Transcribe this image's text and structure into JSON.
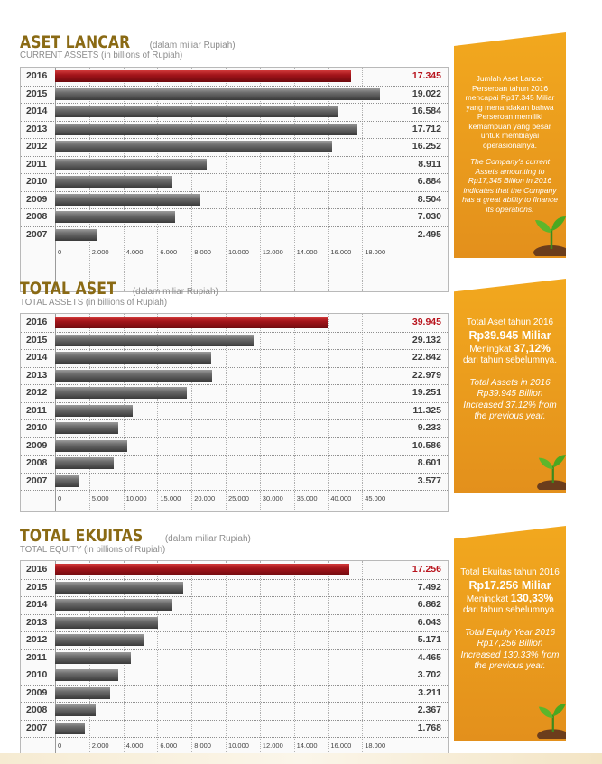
{
  "colors": {
    "title": "#8a6a14",
    "highlight": "#b8141d",
    "bar": "#4a4a4a",
    "panel": "#eb9c1d"
  },
  "sections": [
    {
      "title": "ASET LANCAR",
      "title_note": "(dalam miliar Rupiah)",
      "subtitle": "CURRENT ASSETS (in billions of Rupiah)",
      "panel": {
        "id_text": "Jumlah Aset Lancar Perseroan tahun 2016 mencapai Rp17.345 Miliar yang menandakan bahwa Perseroan memiliki kemampuan yang besar untuk membiayai operasionalnya.",
        "en_text": "The Company's current Assets amounting to Rp17,345 Billion in 2016 indicates that the Company has a great ability to finance its operations."
      }
    },
    {
      "title": "TOTAL ASET",
      "title_note": "(dalam miliar Rupiah)",
      "subtitle": "TOTAL ASSETS (in billions of Rupiah)",
      "panel": {
        "line1": "Total Aset tahun 2016",
        "big": "Rp39.945 Miliar",
        "line3_a": "Meningkat",
        "line3_b": "37,12%",
        "line4": "dari tahun sebelumnya.",
        "en_text": "Total Assets in 2016 Rp39.945 Billion Increased 37.12% from the previous year."
      }
    },
    {
      "title": "TOTAL EKUITAS",
      "title_note": "(dalam miliar Rupiah)",
      "subtitle": "TOTAL EQUITY (in billions of Rupiah)",
      "panel": {
        "line1": "Total Ekuitas tahun 2016",
        "big": "Rp17.256 Miliar",
        "line3_a": "Meningkat",
        "line3_b": "130,33%",
        "line4": "dari tahun sebelumnya.",
        "en_text": "Total Equity Year 2016 Rp17,256 Billion Increased 130.33% from the previous year."
      }
    }
  ],
  "chart_data": [
    {
      "type": "bar",
      "title": "ASET LANCAR",
      "categories": [
        "2016",
        "2015",
        "2014",
        "2013",
        "2012",
        "2011",
        "2010",
        "2009",
        "2008",
        "2007"
      ],
      "values": [
        17345,
        19022,
        16584,
        17712,
        16252,
        8911,
        6884,
        8504,
        7030,
        2495
      ],
      "value_labels": [
        "17.345",
        "19.022",
        "16.584",
        "17.712",
        "16.252",
        "8.911",
        "6.884",
        "8.504",
        "7.030",
        "2.495"
      ],
      "ticks": [
        0,
        2000,
        4000,
        6000,
        8000,
        10000,
        12000,
        14000,
        16000,
        18000
      ],
      "tick_labels": [
        "0",
        "2.000",
        "4.000",
        "6.000",
        "8.000",
        "10.000",
        "12.000",
        "14.000",
        "16.000",
        "18.000"
      ],
      "xlim": [
        0,
        20000
      ],
      "highlight": "2016"
    },
    {
      "type": "bar",
      "title": "TOTAL ASET",
      "categories": [
        "2016",
        "2015",
        "2014",
        "2013",
        "2012",
        "2011",
        "2010",
        "2009",
        "2008",
        "2007"
      ],
      "values": [
        39945,
        29132,
        22842,
        22979,
        19251,
        11325,
        9233,
        10586,
        8601,
        3577
      ],
      "value_labels": [
        "39.945",
        "29.132",
        "22.842",
        "22.979",
        "19.251",
        "11.325",
        "9.233",
        "10.586",
        "8.601",
        "3.577"
      ],
      "ticks": [
        0,
        5000,
        10000,
        15000,
        20000,
        25000,
        30000,
        35000,
        40000,
        45000
      ],
      "tick_labels": [
        "0",
        "5.000",
        "10.000",
        "15.000",
        "20.000",
        "25.000",
        "30.000",
        "35.000",
        "40.000",
        "45.000"
      ],
      "xlim": [
        0,
        47000
      ],
      "highlight": "2016"
    },
    {
      "type": "bar",
      "title": "TOTAL EKUITAS",
      "categories": [
        "2016",
        "2015",
        "2014",
        "2013",
        "2012",
        "2011",
        "2010",
        "2009",
        "2008",
        "2007"
      ],
      "values": [
        17256,
        7492,
        6862,
        6043,
        5171,
        4465,
        3702,
        3211,
        2367,
        1768
      ],
      "value_labels": [
        "17.256",
        "7.492",
        "6.862",
        "6.043",
        "5.171",
        "4.465",
        "3.702",
        "3.211",
        "2.367",
        "1.768"
      ],
      "ticks": [
        0,
        2000,
        4000,
        6000,
        8000,
        10000,
        12000,
        14000,
        16000,
        18000
      ],
      "tick_labels": [
        "0",
        "2.000",
        "4.000",
        "6.000",
        "8.000",
        "10.000",
        "12.000",
        "14.000",
        "16.000",
        "18.000"
      ],
      "xlim": [
        0,
        20000
      ],
      "highlight": "2016"
    }
  ]
}
